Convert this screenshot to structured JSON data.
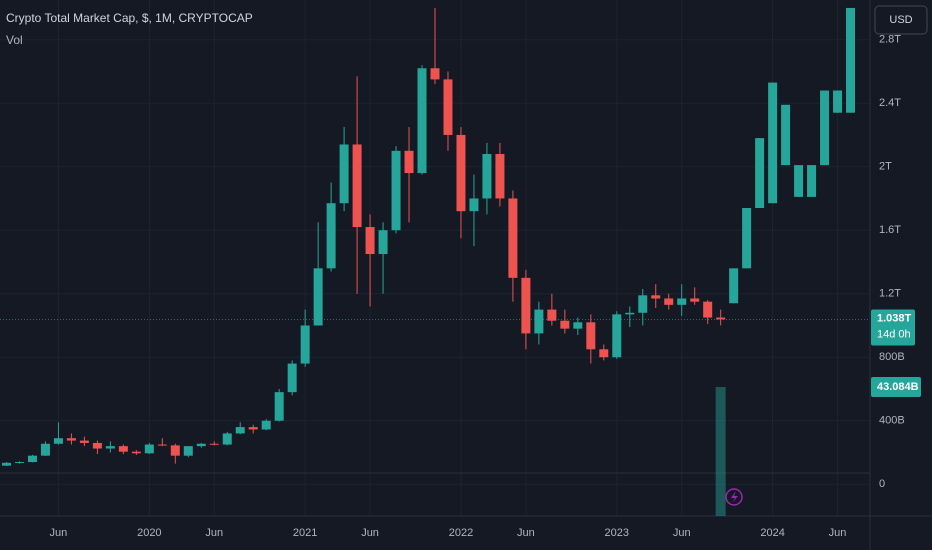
{
  "chart_data": {
    "type": "candlestick",
    "title": "Crypto Total Market Cap, $, 1M, CRYPTOCAP",
    "volume_label": "Vol",
    "currency_button": "USD",
    "up_color": "#26a69a",
    "down_color": "#ef5350",
    "ylim": [
      -200,
      3050
    ],
    "yticks": [
      0,
      {
        "value": 400,
        "label": "400B"
      },
      {
        "value": 800,
        "label": "800B"
      },
      {
        "value": 1200,
        "label": "1.2T"
      },
      {
        "value": 1600,
        "label": "1.6T"
      },
      {
        "value": 2000,
        "label": "2T"
      },
      {
        "value": 2400,
        "label": "2.4T"
      },
      {
        "value": 2800,
        "label": "2.8T"
      }
    ],
    "xlim": [
      -0.5,
      66.5
    ],
    "xticks": [
      {
        "value": 4,
        "label": "Jun"
      },
      {
        "value": 11,
        "label": "2020"
      },
      {
        "value": 16,
        "label": "Jun"
      },
      {
        "value": 23,
        "label": "2021"
      },
      {
        "value": 28,
        "label": "Jun"
      },
      {
        "value": 35,
        "label": "2022"
      },
      {
        "value": 40,
        "label": "Jun"
      },
      {
        "value": 47,
        "label": "2023"
      },
      {
        "value": 52,
        "label": "Jun"
      },
      {
        "value": 59,
        "label": "2024"
      },
      {
        "value": 64,
        "label": "Jun"
      }
    ],
    "grid": true,
    "ohlc": [
      [
        117,
        140,
        115,
        135
      ],
      [
        135,
        145,
        130,
        140
      ],
      [
        140,
        185,
        138,
        180
      ],
      [
        180,
        270,
        178,
        255
      ],
      [
        255,
        390,
        250,
        290
      ],
      [
        290,
        320,
        250,
        275
      ],
      [
        275,
        300,
        240,
        260
      ],
      [
        260,
        275,
        190,
        225
      ],
      [
        225,
        270,
        200,
        240
      ],
      [
        240,
        250,
        190,
        205
      ],
      [
        205,
        215,
        185,
        195
      ],
      [
        195,
        260,
        190,
        250
      ],
      [
        250,
        290,
        240,
        245
      ],
      [
        245,
        255,
        130,
        180
      ],
      [
        180,
        240,
        170,
        240
      ],
      [
        240,
        260,
        230,
        255
      ],
      [
        255,
        270,
        245,
        250
      ],
      [
        250,
        330,
        245,
        320
      ],
      [
        320,
        390,
        315,
        360
      ],
      [
        360,
        375,
        320,
        345
      ],
      [
        345,
        410,
        340,
        400
      ],
      [
        400,
        600,
        395,
        580
      ],
      [
        580,
        780,
        560,
        760
      ],
      [
        760,
        1100,
        740,
        1000
      ],
      [
        1000,
        1650,
        1000,
        1360
      ],
      [
        1360,
        1900,
        1340,
        1770
      ],
      [
        1770,
        2250,
        1720,
        2140
      ],
      [
        2140,
        2570,
        1200,
        1620
      ],
      [
        1620,
        1700,
        1120,
        1450
      ],
      [
        1450,
        1650,
        1200,
        1600
      ],
      [
        1600,
        2130,
        1580,
        2100
      ],
      [
        2100,
        2250,
        1650,
        1960
      ],
      [
        1960,
        2640,
        1950,
        2620
      ],
      [
        2620,
        3000,
        2520,
        2550
      ],
      [
        2550,
        2600,
        2100,
        2200
      ],
      [
        2200,
        2250,
        1550,
        1720
      ],
      [
        1720,
        1950,
        1500,
        1800
      ],
      [
        1800,
        2150,
        1700,
        2080
      ],
      [
        2080,
        2150,
        1750,
        1800
      ],
      [
        1800,
        1850,
        1150,
        1300
      ],
      [
        1300,
        1350,
        850,
        950
      ],
      [
        950,
        1150,
        880,
        1100
      ],
      [
        1100,
        1200,
        1000,
        1030
      ],
      [
        1030,
        1100,
        950,
        980
      ],
      [
        980,
        1050,
        940,
        1020
      ],
      [
        1020,
        1070,
        760,
        850
      ],
      [
        850,
        880,
        780,
        800
      ],
      [
        800,
        1090,
        790,
        1070
      ],
      [
        1070,
        1120,
        990,
        1080
      ],
      [
        1080,
        1230,
        1000,
        1190
      ],
      [
        1190,
        1260,
        1110,
        1170
      ],
      [
        1170,
        1200,
        1100,
        1130
      ],
      [
        1130,
        1260,
        1060,
        1170
      ],
      [
        1170,
        1240,
        1130,
        1150
      ],
      [
        1150,
        1160,
        1010,
        1050
      ],
      [
        1050,
        1100,
        1000,
        1038
      ],
      [
        1140,
        1360,
        1140,
        1360
      ],
      [
        1360,
        1740,
        1360,
        1740
      ],
      [
        1740,
        2180,
        1740,
        2180
      ],
      [
        1770,
        2530,
        1770,
        2530
      ],
      [
        2010,
        2390,
        2010,
        2390
      ],
      [
        1810,
        2010,
        1810,
        2010
      ],
      [
        1810,
        2010,
        1810,
        2010
      ],
      [
        2010,
        2480,
        2010,
        2480
      ],
      [
        2340,
        2480,
        2340,
        2480
      ],
      [
        2340,
        3000,
        2340,
        3000
      ]
    ],
    "last_price": 1038,
    "last_price_label": "1.038T",
    "countdown": "14d 0h",
    "volume": {
      "index": 55,
      "value": 43.084,
      "label": "43.084B"
    }
  }
}
